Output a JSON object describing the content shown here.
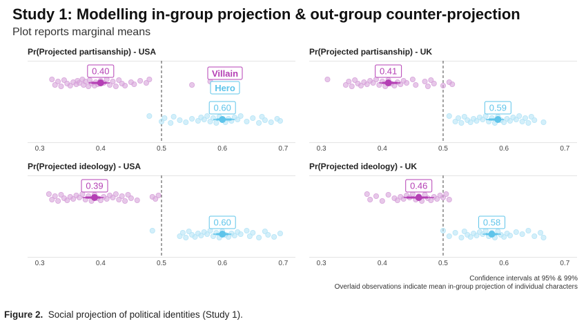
{
  "title": "Study 1: Modelling in-group projection & out-group counter-projection",
  "subtitle": "Plot reports marginal means",
  "colors": {
    "villain": "#b43fb4",
    "villain_light": "#d7a3da",
    "hero": "#5ec4ea",
    "hero_light": "#b5e4f6"
  },
  "chart_data": [
    {
      "type": "scatter",
      "title": "Pr(Projected partisanship) - USA",
      "xlim": [
        0.28,
        0.72
      ],
      "xticks": [
        0.3,
        0.4,
        0.5,
        0.6,
        0.7
      ],
      "tick_labels": [
        "0.3",
        "0.4",
        "0.5",
        "0.6",
        "0.7"
      ],
      "reference_line": 0.5,
      "legend": [
        "Villain",
        "Hero"
      ],
      "series": [
        {
          "name": "Villain",
          "mean": 0.4,
          "label": "0.40",
          "ci95": [
            0.385,
            0.41
          ],
          "ci99": [
            0.38,
            0.415
          ],
          "points": [
            0.32,
            0.325,
            0.33,
            0.335,
            0.34,
            0.345,
            0.35,
            0.355,
            0.36,
            0.362,
            0.365,
            0.37,
            0.372,
            0.375,
            0.38,
            0.382,
            0.385,
            0.39,
            0.392,
            0.395,
            0.4,
            0.405,
            0.41,
            0.415,
            0.42,
            0.425,
            0.43,
            0.435,
            0.44,
            0.45,
            0.455,
            0.465,
            0.475,
            0.48,
            0.55,
            0.58
          ]
        },
        {
          "name": "Hero",
          "mean": 0.6,
          "label": "0.60",
          "ci95": [
            0.59,
            0.615
          ],
          "ci99": [
            0.585,
            0.62
          ],
          "points": [
            0.48,
            0.5,
            0.505,
            0.515,
            0.52,
            0.53,
            0.54,
            0.55,
            0.56,
            0.565,
            0.57,
            0.575,
            0.58,
            0.585,
            0.59,
            0.595,
            0.6,
            0.605,
            0.61,
            0.615,
            0.62,
            0.625,
            0.63,
            0.64,
            0.65,
            0.66,
            0.665,
            0.67,
            0.68,
            0.69,
            0.695
          ]
        }
      ]
    },
    {
      "type": "scatter",
      "title": "Pr(Projected partisanship) - UK",
      "xlim": [
        0.28,
        0.72
      ],
      "xticks": [
        0.3,
        0.4,
        0.5,
        0.6,
        0.7
      ],
      "tick_labels": [
        "0.3",
        "0.4",
        "0.5",
        "0.6",
        "0.7"
      ],
      "reference_line": 0.5,
      "series": [
        {
          "name": "Villain",
          "mean": 0.41,
          "label": "0.41",
          "ci95": [
            0.4,
            0.425
          ],
          "ci99": [
            0.395,
            0.43
          ],
          "points": [
            0.31,
            0.34,
            0.345,
            0.35,
            0.355,
            0.36,
            0.365,
            0.37,
            0.375,
            0.38,
            0.385,
            0.39,
            0.395,
            0.4,
            0.405,
            0.41,
            0.415,
            0.42,
            0.425,
            0.43,
            0.435,
            0.44,
            0.45,
            0.455,
            0.47,
            0.475,
            0.48,
            0.485,
            0.5,
            0.51,
            0.515
          ]
        },
        {
          "name": "Hero",
          "mean": 0.59,
          "label": "0.59",
          "ci95": [
            0.575,
            0.595
          ],
          "ci99": [
            0.57,
            0.6
          ],
          "points": [
            0.51,
            0.52,
            0.525,
            0.53,
            0.535,
            0.54,
            0.545,
            0.55,
            0.555,
            0.56,
            0.565,
            0.57,
            0.575,
            0.58,
            0.585,
            0.59,
            0.595,
            0.6,
            0.605,
            0.61,
            0.615,
            0.62,
            0.625,
            0.63,
            0.635,
            0.64,
            0.645,
            0.65,
            0.665
          ]
        }
      ]
    },
    {
      "type": "scatter",
      "title": "Pr(Projected ideology) - USA",
      "xlim": [
        0.28,
        0.72
      ],
      "xticks": [
        0.3,
        0.4,
        0.5,
        0.6,
        0.7
      ],
      "tick_labels": [
        "0.3",
        "0.4",
        "0.5",
        "0.6",
        "0.7"
      ],
      "reference_line": 0.5,
      "series": [
        {
          "name": "Villain",
          "mean": 0.39,
          "label": "0.39",
          "ci95": [
            0.375,
            0.4
          ],
          "ci99": [
            0.37,
            0.405
          ],
          "points": [
            0.315,
            0.32,
            0.325,
            0.33,
            0.335,
            0.34,
            0.345,
            0.35,
            0.355,
            0.36,
            0.365,
            0.37,
            0.375,
            0.38,
            0.385,
            0.39,
            0.395,
            0.4,
            0.405,
            0.41,
            0.415,
            0.42,
            0.425,
            0.43,
            0.435,
            0.44,
            0.445,
            0.45,
            0.46,
            0.485,
            0.49,
            0.495
          ]
        },
        {
          "name": "Hero",
          "mean": 0.6,
          "label": "0.60",
          "ci95": [
            0.59,
            0.61
          ],
          "ci99": [
            0.585,
            0.615
          ],
          "points": [
            0.485,
            0.53,
            0.535,
            0.54,
            0.545,
            0.55,
            0.555,
            0.56,
            0.565,
            0.57,
            0.575,
            0.58,
            0.585,
            0.59,
            0.595,
            0.6,
            0.605,
            0.61,
            0.615,
            0.62,
            0.625,
            0.63,
            0.64,
            0.645,
            0.65,
            0.66,
            0.67,
            0.675,
            0.685,
            0.695
          ]
        }
      ]
    },
    {
      "type": "scatter",
      "title": "Pr(Projected ideology) - UK",
      "xlim": [
        0.28,
        0.72
      ],
      "xticks": [
        0.3,
        0.4,
        0.5,
        0.6,
        0.7
      ],
      "tick_labels": [
        "0.3",
        "0.4",
        "0.5",
        "0.6",
        "0.7"
      ],
      "reference_line": 0.5,
      "series": [
        {
          "name": "Villain",
          "mean": 0.46,
          "label": "0.46",
          "ci95": [
            0.44,
            0.475
          ],
          "ci99": [
            0.435,
            0.485
          ],
          "points": [
            0.375,
            0.38,
            0.39,
            0.4,
            0.41,
            0.42,
            0.425,
            0.43,
            0.435,
            0.44,
            0.445,
            0.45,
            0.455,
            0.46,
            0.465,
            0.47,
            0.475,
            0.48,
            0.485,
            0.49,
            0.495,
            0.5,
            0.505,
            0.51
          ]
        },
        {
          "name": "Hero",
          "mean": 0.58,
          "label": "0.58",
          "ci95": [
            0.57,
            0.59
          ],
          "ci99": [
            0.565,
            0.595
          ],
          "points": [
            0.5,
            0.51,
            0.52,
            0.53,
            0.535,
            0.54,
            0.545,
            0.55,
            0.555,
            0.56,
            0.565,
            0.57,
            0.575,
            0.58,
            0.585,
            0.59,
            0.595,
            0.6,
            0.605,
            0.61,
            0.62,
            0.63,
            0.64,
            0.65,
            0.66,
            0.665
          ]
        }
      ]
    }
  ],
  "notes": {
    "line1": "Confidence intervals at 95% & 99%",
    "line2": "Overlaid observations indicate mean in-group projection of individual characters"
  },
  "caption": {
    "label": "Figure 2.",
    "text": "Social projection of political identities (Study 1)."
  }
}
